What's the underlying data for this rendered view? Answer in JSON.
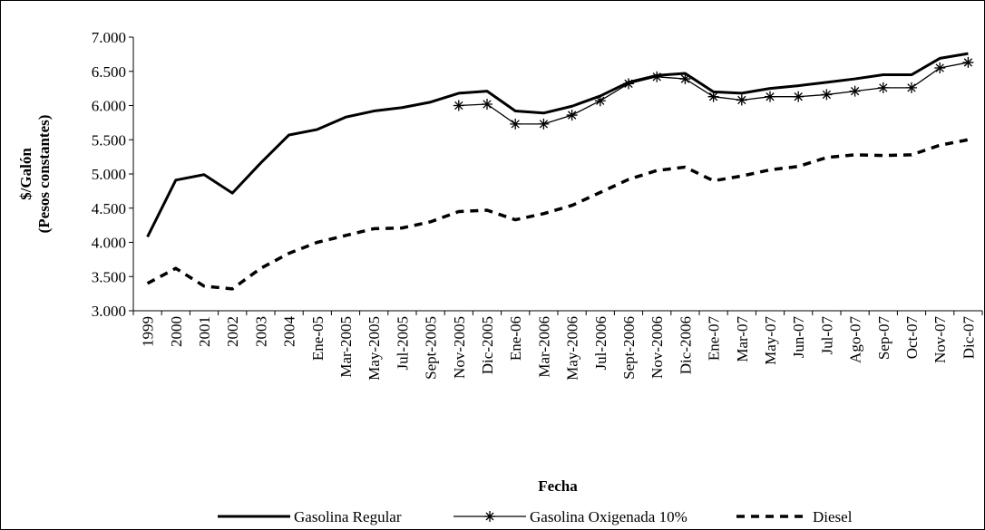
{
  "chart_data": {
    "type": "line",
    "y_label": [
      "$/Galón",
      "(Pesos constantes)"
    ],
    "x_label": "Fecha",
    "categories": [
      "1999",
      "2000",
      "2001",
      "2002",
      "2003",
      "2004",
      "Ene-05",
      "Mar-2005",
      "May-2005",
      "Jul-2005",
      "Sept-2005",
      "Nov-2005",
      "Dic-2005",
      "Ene-06",
      "Mar-2006",
      "May-2006",
      "Jul-2006",
      "Sept-2006",
      "Nov-2006",
      "Dic-2006",
      "Ene-07",
      "Mar-07",
      "May-07",
      "Jun-07",
      "Jul-07",
      "Ago-07",
      "Sep-07",
      "Oct-07",
      "Nov-07",
      "Dic-07"
    ],
    "series": [
      {
        "name": "Gasolina Regular",
        "color": "#000000",
        "style": "solid",
        "values": [
          4080,
          4910,
          4990,
          4720,
          5160,
          5570,
          5650,
          5830,
          5920,
          5970,
          6050,
          6180,
          6210,
          5920,
          5890,
          5990,
          6140,
          6340,
          6440,
          6470,
          6200,
          6180,
          6250,
          6290,
          6340,
          6390,
          6450,
          6450,
          6690,
          6760
        ]
      },
      {
        "name": "Gasolina Oxigenada 10%",
        "color": "#000000",
        "style": "star",
        "values": [
          null,
          null,
          null,
          null,
          null,
          null,
          null,
          null,
          null,
          null,
          null,
          6000,
          6020,
          5730,
          5730,
          5860,
          6070,
          6320,
          6420,
          6390,
          6130,
          6080,
          6130,
          6130,
          6160,
          6210,
          6260,
          6260,
          6550,
          6630
        ]
      },
      {
        "name": "Diesel",
        "color": "#000000",
        "style": "dashed",
        "values": [
          3400,
          3620,
          3360,
          3320,
          3620,
          3840,
          4000,
          4100,
          4200,
          4210,
          4300,
          4450,
          4470,
          4330,
          4420,
          4540,
          4730,
          4920,
          5050,
          5100,
          4900,
          4970,
          5060,
          5110,
          5240,
          5280,
          5270,
          5280,
          5420,
          5500
        ]
      }
    ],
    "ylim": [
      3000,
      7000
    ],
    "yticks": [
      {
        "value": 3000,
        "label": "3.000"
      },
      {
        "value": 3500,
        "label": "3.500"
      },
      {
        "value": 4000,
        "label": "4.000"
      },
      {
        "value": 4500,
        "label": "4.500"
      },
      {
        "value": 5000,
        "label": "5.000"
      },
      {
        "value": 5500,
        "label": "5.500"
      },
      {
        "value": 6000,
        "label": "6.000"
      },
      {
        "value": 6500,
        "label": "6.500"
      },
      {
        "value": 7000,
        "label": "7.000"
      }
    ],
    "legend": "bottom"
  }
}
